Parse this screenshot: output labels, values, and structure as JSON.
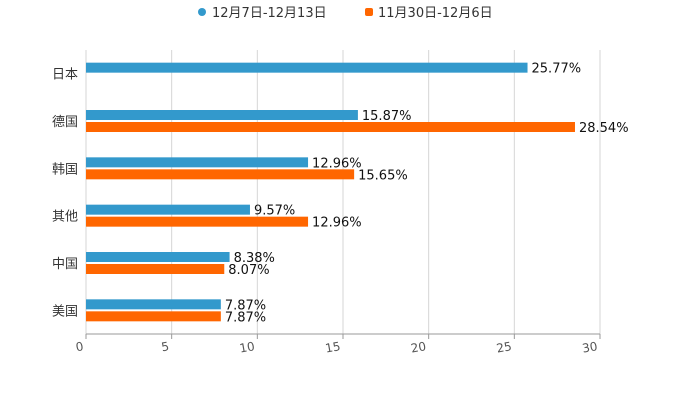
{
  "chart_data": {
    "type": "bar",
    "orientation": "horizontal",
    "title": "",
    "xlabel": "",
    "ylabel": "",
    "categories": [
      "日本",
      "德国",
      "韩国",
      "其他",
      "中国",
      "美国"
    ],
    "series": [
      {
        "name": "12月7日-12月13日",
        "color": "#3399cc",
        "values": [
          25.77,
          15.87,
          12.96,
          9.57,
          8.38,
          7.87
        ],
        "labels": [
          "25.77%",
          "15.87%",
          "12.96%",
          "9.57%",
          "8.38%",
          "7.87%"
        ]
      },
      {
        "name": "11月30日-12月6日",
        "color": "#ff6600",
        "values": [
          null,
          28.54,
          15.65,
          12.96,
          8.07,
          7.87
        ],
        "labels": [
          "",
          "28.54%",
          "15.65%",
          "12.96%",
          "8.07%",
          "7.87%"
        ]
      }
    ],
    "xlim": [
      0,
      30
    ],
    "xticks": [
      "0",
      "5",
      "10",
      "15",
      "20",
      "25",
      "30"
    ],
    "grid": true,
    "legend": "top-center"
  }
}
